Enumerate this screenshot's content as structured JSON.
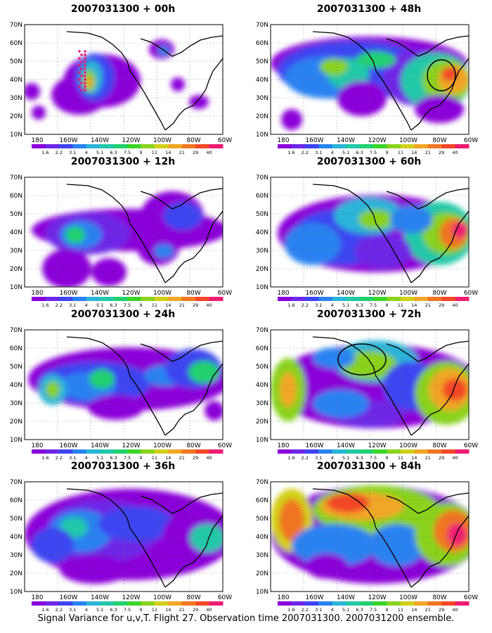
{
  "lat_labels": [
    "70N",
    "60N",
    "50N",
    "40N",
    "30N",
    "20N",
    "10N"
  ],
  "lon_labels": [
    "180",
    "160W",
    "140W",
    "120W",
    "100W",
    "80W",
    "60W"
  ],
  "colorbar": {
    "labels": [
      "1.6",
      "2.2",
      "3.1",
      "4",
      "5.1",
      "6.3",
      "7.5",
      "9",
      "11",
      "14",
      "21",
      "29",
      "40"
    ],
    "colors": [
      "#8a00d8",
      "#6e27e6",
      "#3d44f0",
      "#2a82f0",
      "#2ab4d8",
      "#22c8a8",
      "#23d06e",
      "#3cd42a",
      "#8ad21e",
      "#d2cf19",
      "#f0a626",
      "#f07524",
      "#f24728",
      "#ee1c70"
    ]
  },
  "panels": [
    {
      "title": "2007031300 + 00h"
    },
    {
      "title": "2007031300 + 48h"
    },
    {
      "title": "2007031300 + 12h"
    },
    {
      "title": "2007031300 + 60h"
    },
    {
      "title": "2007031300 + 24h"
    },
    {
      "title": "2007031300 + 72h"
    },
    {
      "title": "2007031300 + 36h"
    },
    {
      "title": "2007031300 + 84h"
    }
  ],
  "caption": "Signal Variance for u,v,T. Flight 27. Observation time 2007031300. 2007031200 ensemble."
}
